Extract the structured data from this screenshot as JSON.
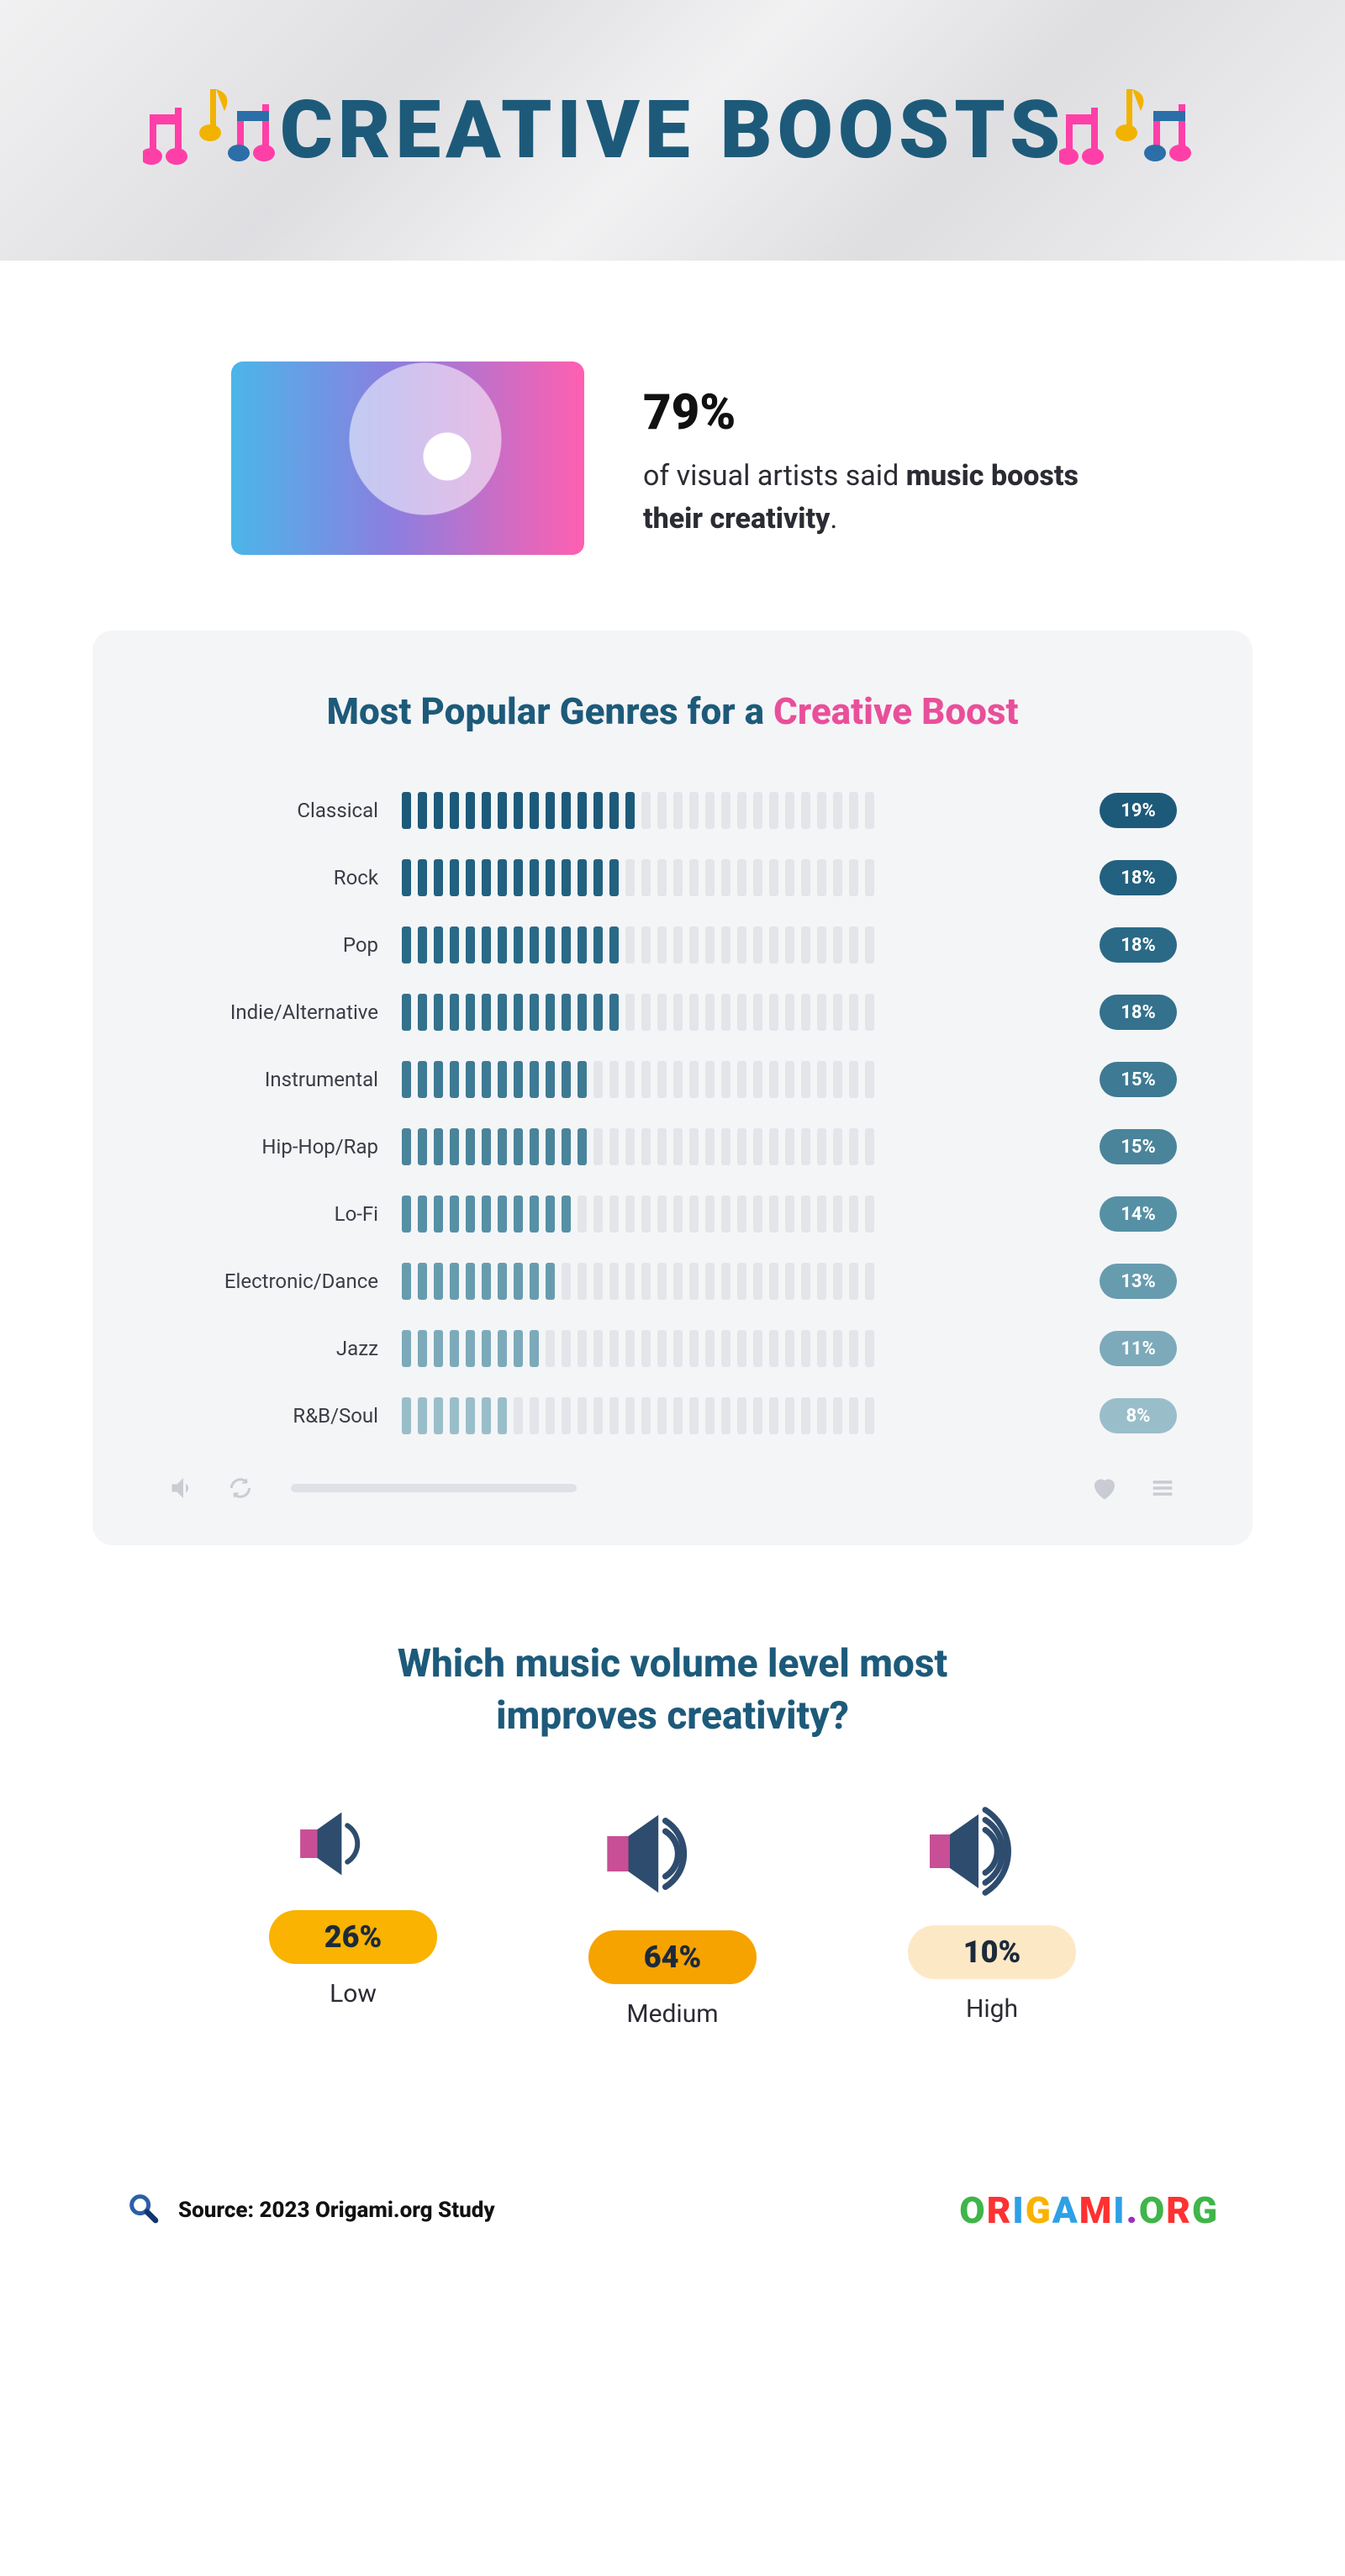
{
  "header": {
    "title": "CREATIVE BOOSTS",
    "title_color": "#1d5a7a",
    "title_fontsize": 96,
    "banner_bg": "#e8e8ea",
    "note_colors": {
      "pink": "#ff3fa8",
      "gold": "#f2b200",
      "blue": "#2b6ea8"
    }
  },
  "hero": {
    "percent": "79%",
    "line_before": " of visual artists said ",
    "line_bold1": "music boosts their creativity",
    "line_after": ".",
    "image_gradient_start": "#4bb6e8",
    "image_gradient_end": "#ff5fb0"
  },
  "genres_panel": {
    "title_prefix": "Most Popular Genres for a ",
    "title_accent": "Creative Boost",
    "title_color": "#1d5a7a",
    "accent_color": "#e94f9a",
    "panel_bg": "#f4f5f7",
    "tick_total": 30,
    "tick_off_color": "#e3e5ea",
    "tick_max_value": 40,
    "rows": [
      {
        "label": "Classical",
        "value": 19,
        "ticks_on": 15,
        "color": "#1d5a7a"
      },
      {
        "label": "Rock",
        "value": 18,
        "ticks_on": 14,
        "color": "#22617f"
      },
      {
        "label": "Pop",
        "value": 18,
        "ticks_on": 14,
        "color": "#2a6a86"
      },
      {
        "label": "Indie/Alternative",
        "value": 18,
        "ticks_on": 14,
        "color": "#33718c"
      },
      {
        "label": "Instrumental",
        "value": 15,
        "ticks_on": 12,
        "color": "#3e7a93"
      },
      {
        "label": "Hip-Hop/Rap",
        "value": 15,
        "ticks_on": 12,
        "color": "#4a849b"
      },
      {
        "label": "Lo-Fi",
        "value": 14,
        "ticks_on": 11,
        "color": "#5690a5"
      },
      {
        "label": "Electronic/Dance",
        "value": 13,
        "ticks_on": 10,
        "color": "#679cae"
      },
      {
        "label": "Jazz",
        "value": 11,
        "ticks_on": 9,
        "color": "#7caabb"
      },
      {
        "label": "R&B/Soul",
        "value": 8,
        "ticks_on": 7,
        "color": "#9abec9"
      }
    ],
    "footer_icon_color": "#c9ccd3"
  },
  "volume": {
    "title_line1": "Which music volume level most",
    "title_line2": "improves creativity?",
    "title_color": "#1d5a7a",
    "speaker_body": "#2e4c6e",
    "speaker_accent": "#c84f95",
    "wave_color": "#2e4c6e",
    "items": [
      {
        "pct": "26%",
        "label": "Low",
        "pill_bg": "#f9b300",
        "waves": 1,
        "scale": 0.85
      },
      {
        "pct": "64%",
        "label": "Medium",
        "pill_bg": "#f6a300",
        "waves": 2,
        "scale": 1.05
      },
      {
        "pct": "10%",
        "label": "High",
        "pill_bg": "#fde8c6",
        "waves": 3,
        "scale": 1.0
      }
    ]
  },
  "footer": {
    "source_label": "Source: 2023 Origami.org Study",
    "logo_text": "ORIGAMI.ORG",
    "magnifier_color": "#2b5fa8"
  }
}
